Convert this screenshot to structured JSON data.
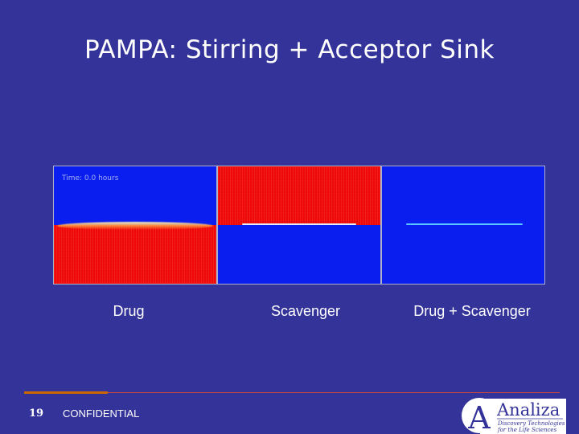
{
  "slide": {
    "title": "PAMPA: Stirring + Acceptor Sink",
    "simulation": {
      "time_label": "Time: 0.0 hours",
      "panels": [
        {
          "caption": "Drug",
          "top_color": "#0a1ef0",
          "bottom_color": "#f40a0a",
          "interface": "orange-glow"
        },
        {
          "caption": "Scavenger",
          "top_color": "#f40a0a",
          "bottom_color": "#0a1ef0",
          "interface": "white-line"
        },
        {
          "caption": "Drug + Scavenger",
          "top_color": "#0a1ef0",
          "bottom_color": "#0a1ef0",
          "interface": "cyan-line"
        }
      ]
    }
  },
  "footer": {
    "page_number": "19",
    "confidential": "CONFIDENTIAL",
    "logo": {
      "name": "Analiza",
      "tagline_line1": "Discovery Technologies",
      "tagline_line2": "for the Life Sciences",
      "letter": "A"
    }
  },
  "colors": {
    "background": "#333399",
    "accent_orange": "#cc6600",
    "accent_red": "#c64545",
    "sim_blue": "#0a1ef0",
    "sim_red": "#f40a0a"
  }
}
